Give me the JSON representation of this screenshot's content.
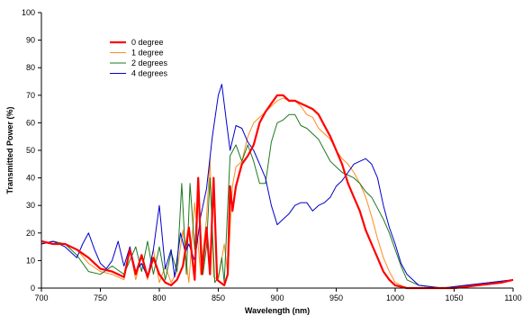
{
  "chart_data": {
    "type": "line",
    "title": "",
    "xlabel": "Wavelength (nm)",
    "ylabel": "Transmitted Power (%)",
    "xlim": [
      700,
      1100
    ],
    "ylim": [
      0,
      100
    ],
    "xticks": [
      700,
      750,
      800,
      850,
      900,
      950,
      1000,
      1050,
      1100
    ],
    "yticks": [
      0,
      10,
      20,
      30,
      40,
      50,
      60,
      70,
      80,
      90,
      100
    ],
    "grid": false,
    "legend_position": "top-left",
    "series": [
      {
        "name": "0 degree",
        "color": "#ff0000",
        "stroke": 2.2,
        "points": [
          [
            700,
            17
          ],
          [
            710,
            16
          ],
          [
            720,
            16
          ],
          [
            730,
            14
          ],
          [
            740,
            11
          ],
          [
            750,
            7
          ],
          [
            760,
            6
          ],
          [
            770,
            4
          ],
          [
            775,
            14
          ],
          [
            780,
            5
          ],
          [
            785,
            12
          ],
          [
            790,
            4
          ],
          [
            795,
            11
          ],
          [
            800,
            5
          ],
          [
            805,
            2
          ],
          [
            810,
            1
          ],
          [
            815,
            3
          ],
          [
            820,
            8
          ],
          [
            825,
            22
          ],
          [
            830,
            3
          ],
          [
            833,
            40
          ],
          [
            836,
            5
          ],
          [
            840,
            22
          ],
          [
            843,
            5
          ],
          [
            846,
            40
          ],
          [
            849,
            3
          ],
          [
            852,
            2
          ],
          [
            855,
            1
          ],
          [
            858,
            5
          ],
          [
            860,
            37
          ],
          [
            862,
            28
          ],
          [
            865,
            37
          ],
          [
            870,
            45
          ],
          [
            875,
            48
          ],
          [
            880,
            52
          ],
          [
            885,
            60
          ],
          [
            890,
            64
          ],
          [
            895,
            67
          ],
          [
            900,
            70
          ],
          [
            905,
            70
          ],
          [
            910,
            68
          ],
          [
            915,
            68
          ],
          [
            920,
            67
          ],
          [
            925,
            66
          ],
          [
            930,
            65
          ],
          [
            935,
            63
          ],
          [
            940,
            59
          ],
          [
            945,
            55
          ],
          [
            950,
            50
          ],
          [
            955,
            45
          ],
          [
            960,
            38
          ],
          [
            965,
            33
          ],
          [
            970,
            28
          ],
          [
            975,
            21
          ],
          [
            980,
            16
          ],
          [
            985,
            11
          ],
          [
            990,
            6
          ],
          [
            995,
            3
          ],
          [
            1000,
            1
          ],
          [
            1010,
            0
          ],
          [
            1030,
            0
          ],
          [
            1050,
            0
          ],
          [
            1070,
            1
          ],
          [
            1090,
            2
          ],
          [
            1100,
            3
          ]
        ]
      },
      {
        "name": "1 degree",
        "color": "#ff8c1a",
        "stroke": 1,
        "points": [
          [
            700,
            17
          ],
          [
            710,
            16
          ],
          [
            720,
            16
          ],
          [
            730,
            14
          ],
          [
            740,
            9
          ],
          [
            750,
            6
          ],
          [
            760,
            5
          ],
          [
            770,
            3
          ],
          [
            775,
            14
          ],
          [
            780,
            3
          ],
          [
            785,
            12
          ],
          [
            790,
            3
          ],
          [
            795,
            14
          ],
          [
            800,
            2
          ],
          [
            805,
            8
          ],
          [
            810,
            2
          ],
          [
            815,
            6
          ],
          [
            820,
            21
          ],
          [
            825,
            2
          ],
          [
            830,
            31
          ],
          [
            835,
            5
          ],
          [
            840,
            25
          ],
          [
            843,
            47
          ],
          [
            846,
            4
          ],
          [
            850,
            3
          ],
          [
            855,
            16
          ],
          [
            858,
            5
          ],
          [
            862,
            37
          ],
          [
            865,
            44
          ],
          [
            870,
            46
          ],
          [
            875,
            55
          ],
          [
            880,
            60
          ],
          [
            885,
            62
          ],
          [
            890,
            64
          ],
          [
            895,
            66
          ],
          [
            900,
            68
          ],
          [
            905,
            69
          ],
          [
            910,
            68
          ],
          [
            915,
            68
          ],
          [
            920,
            66
          ],
          [
            925,
            63
          ],
          [
            930,
            62
          ],
          [
            935,
            58
          ],
          [
            940,
            56
          ],
          [
            945,
            54
          ],
          [
            950,
            50
          ],
          [
            955,
            47
          ],
          [
            960,
            45
          ],
          [
            965,
            42
          ],
          [
            970,
            38
          ],
          [
            975,
            33
          ],
          [
            980,
            26
          ],
          [
            985,
            18
          ],
          [
            990,
            11
          ],
          [
            995,
            6
          ],
          [
            1000,
            2
          ],
          [
            1010,
            0
          ],
          [
            1030,
            0
          ],
          [
            1050,
            0
          ],
          [
            1070,
            1
          ],
          [
            1090,
            2
          ],
          [
            1100,
            3
          ]
        ]
      },
      {
        "name": "2 degrees",
        "color": "#1f7a1f",
        "stroke": 1,
        "points": [
          [
            700,
            16
          ],
          [
            710,
            17
          ],
          [
            720,
            16
          ],
          [
            730,
            12
          ],
          [
            740,
            6
          ],
          [
            750,
            5
          ],
          [
            760,
            8
          ],
          [
            770,
            5
          ],
          [
            780,
            15
          ],
          [
            785,
            6
          ],
          [
            790,
            17
          ],
          [
            795,
            5
          ],
          [
            800,
            15
          ],
          [
            805,
            3
          ],
          [
            810,
            13
          ],
          [
            815,
            6
          ],
          [
            819,
            38
          ],
          [
            823,
            5
          ],
          [
            826,
            38
          ],
          [
            830,
            14
          ],
          [
            833,
            37
          ],
          [
            837,
            5
          ],
          [
            840,
            15
          ],
          [
            843,
            40
          ],
          [
            847,
            2
          ],
          [
            850,
            4
          ],
          [
            853,
            11
          ],
          [
            855,
            2
          ],
          [
            860,
            48
          ],
          [
            865,
            52
          ],
          [
            870,
            46
          ],
          [
            875,
            52
          ],
          [
            880,
            46
          ],
          [
            885,
            38
          ],
          [
            890,
            38
          ],
          [
            895,
            53
          ],
          [
            900,
            60
          ],
          [
            905,
            61
          ],
          [
            910,
            63
          ],
          [
            915,
            63
          ],
          [
            920,
            59
          ],
          [
            925,
            58
          ],
          [
            930,
            56
          ],
          [
            935,
            54
          ],
          [
            940,
            50
          ],
          [
            945,
            46
          ],
          [
            950,
            44
          ],
          [
            955,
            42
          ],
          [
            960,
            41
          ],
          [
            965,
            40
          ],
          [
            970,
            38
          ],
          [
            975,
            35
          ],
          [
            980,
            33
          ],
          [
            985,
            29
          ],
          [
            990,
            25
          ],
          [
            995,
            20
          ],
          [
            1000,
            14
          ],
          [
            1005,
            8
          ],
          [
            1010,
            3
          ],
          [
            1020,
            1
          ],
          [
            1040,
            0
          ],
          [
            1060,
            1
          ],
          [
            1080,
            2
          ],
          [
            1100,
            3
          ]
        ]
      },
      {
        "name": "4 degrees",
        "color": "#0000cc",
        "stroke": 1,
        "points": [
          [
            700,
            16
          ],
          [
            710,
            17
          ],
          [
            720,
            15
          ],
          [
            730,
            11
          ],
          [
            735,
            16
          ],
          [
            740,
            20
          ],
          [
            745,
            14
          ],
          [
            750,
            9
          ],
          [
            755,
            7
          ],
          [
            760,
            10
          ],
          [
            765,
            17
          ],
          [
            770,
            8
          ],
          [
            775,
            15
          ],
          [
            780,
            6
          ],
          [
            785,
            9
          ],
          [
            790,
            4
          ],
          [
            795,
            14
          ],
          [
            800,
            30
          ],
          [
            805,
            7
          ],
          [
            810,
            14
          ],
          [
            813,
            4
          ],
          [
            818,
            20
          ],
          [
            822,
            13
          ],
          [
            825,
            16
          ],
          [
            830,
            10
          ],
          [
            835,
            26
          ],
          [
            840,
            36
          ],
          [
            845,
            55
          ],
          [
            850,
            70
          ],
          [
            853,
            74
          ],
          [
            857,
            60
          ],
          [
            860,
            50
          ],
          [
            865,
            59
          ],
          [
            870,
            58
          ],
          [
            875,
            53
          ],
          [
            880,
            50
          ],
          [
            885,
            45
          ],
          [
            890,
            40
          ],
          [
            895,
            30
          ],
          [
            900,
            23
          ],
          [
            905,
            25
          ],
          [
            910,
            27
          ],
          [
            915,
            30
          ],
          [
            920,
            31
          ],
          [
            925,
            31
          ],
          [
            930,
            28
          ],
          [
            935,
            30
          ],
          [
            940,
            31
          ],
          [
            945,
            33
          ],
          [
            950,
            37
          ],
          [
            955,
            39
          ],
          [
            960,
            42
          ],
          [
            965,
            45
          ],
          [
            970,
            46
          ],
          [
            975,
            47
          ],
          [
            980,
            45
          ],
          [
            985,
            40
          ],
          [
            990,
            30
          ],
          [
            995,
            22
          ],
          [
            1000,
            16
          ],
          [
            1005,
            9
          ],
          [
            1010,
            5
          ],
          [
            1015,
            3
          ],
          [
            1020,
            1
          ],
          [
            1040,
            0
          ],
          [
            1060,
            1
          ],
          [
            1080,
            2
          ],
          [
            1100,
            3
          ]
        ]
      }
    ]
  }
}
